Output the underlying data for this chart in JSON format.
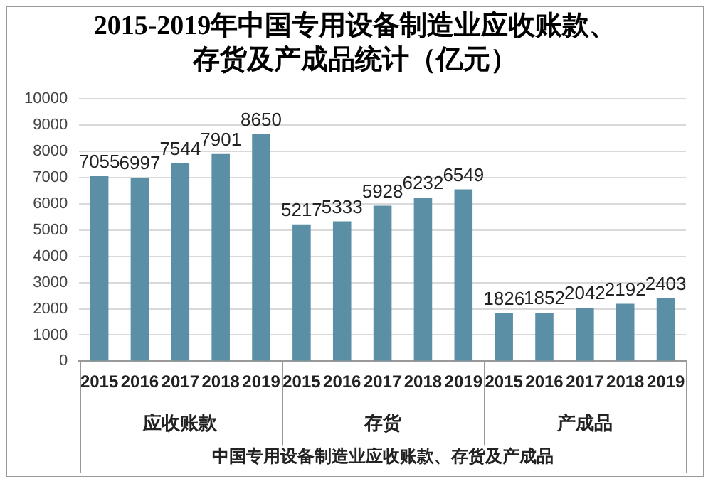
{
  "chart_data": {
    "type": "bar",
    "title": "2015-2019年中国专用设备制造业应收账款、存货及产成品统计（亿元）",
    "xlabel": "中国专用设备制造业应收账款、存货及产成品",
    "categories": [
      "2015",
      "2016",
      "2017",
      "2018",
      "2019",
      "2015",
      "2016",
      "2017",
      "2018",
      "2019",
      "2015",
      "2016",
      "2017",
      "2018",
      "2019"
    ],
    "series": [
      {
        "name": "应收账款",
        "color": "#5b8fa6",
        "values": [
          7055,
          6997,
          7544,
          7901,
          8650,
          null,
          null,
          null,
          null,
          null,
          null,
          null,
          null,
          null,
          null
        ]
      },
      {
        "name": "存货",
        "color": "#5b8fa6",
        "values": [
          null,
          null,
          null,
          null,
          null,
          5217,
          5333,
          5928,
          6232,
          6549,
          null,
          null,
          null,
          null,
          null
        ]
      },
      {
        "name": "产成品",
        "color": "#5b8fa6",
        "values": [
          null,
          null,
          null,
          null,
          null,
          null,
          null,
          null,
          null,
          null,
          1826,
          1852,
          2042,
          2192,
          2403
        ]
      }
    ],
    "stacked": true,
    "ylim": [
      0,
      10000
    ],
    "yticks": [
      0,
      1000,
      2000,
      3000,
      4000,
      5000,
      6000,
      7000,
      8000,
      9000,
      10000
    ],
    "grid": "y",
    "data_labels": true,
    "legend": false
  }
}
